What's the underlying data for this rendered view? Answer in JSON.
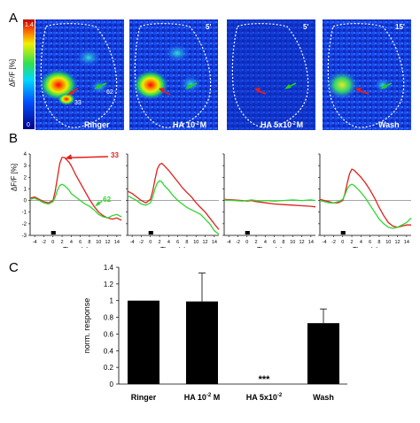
{
  "panel_letters": [
    "A",
    "B",
    "C"
  ],
  "panel_a": {
    "y_title": "ΔF/F [%]",
    "colorbar": {
      "top_label": "1.4",
      "bottom_label": "0"
    },
    "images": [
      {
        "label": "Ringer",
        "time": "",
        "roi_a": "33",
        "roi_b": "62"
      },
      {
        "label": "HA 10",
        "label_sup": "-2",
        "label_suffix": "M",
        "time": "5'"
      },
      {
        "label": "HA 5x10",
        "label_sup": "-2",
        "label_suffix": "M",
        "time": "5'"
      },
      {
        "label": "Wash",
        "time": "15'"
      }
    ]
  },
  "panel_b": {
    "y_title": "ΔF/F [%]",
    "x_title": "Time (s)",
    "series_labels": {
      "red": "33",
      "green": "62"
    },
    "colors": {
      "red": "#e0201c",
      "green": "#2fd62f"
    },
    "yticks": [
      "4",
      "3",
      "2",
      "1",
      "0",
      "-1",
      "-2",
      "-3"
    ],
    "xticks": [
      "-4",
      "-2",
      "0",
      "2",
      "4",
      "6",
      "8",
      "10",
      "12",
      "14"
    ]
  },
  "chart_data": [
    {
      "type": "line",
      "title": "Ringer",
      "xlabel": "Time (s)",
      "ylabel": "ΔF/F [%]",
      "xlim": [
        -5,
        15
      ],
      "ylim": [
        -3,
        4
      ],
      "series": [
        {
          "name": "33",
          "color": "#e0201c",
          "x": [
            -5,
            -4,
            -3,
            -2,
            -1,
            0,
            0.5,
            1,
            1.5,
            2,
            2.5,
            3,
            3.5,
            4,
            4.5,
            5,
            6,
            7,
            8,
            9,
            10,
            11,
            12,
            13,
            14,
            15
          ],
          "y": [
            0.2,
            0.3,
            0.1,
            -0.1,
            -0.2,
            0,
            0.8,
            2.0,
            3.2,
            3.7,
            3.7,
            3.5,
            3.3,
            3.0,
            2.6,
            2.2,
            1.5,
            0.8,
            0.1,
            -0.5,
            -1.0,
            -1.3,
            -1.5,
            -1.6,
            -1.5,
            -1.7
          ]
        },
        {
          "name": "62",
          "color": "#2fd62f",
          "x": [
            -5,
            -4,
            -3,
            -2,
            -1,
            0,
            0.5,
            1,
            1.5,
            2,
            2.5,
            3,
            3.5,
            4,
            5,
            6,
            7,
            8,
            9,
            10,
            11,
            12,
            13,
            14,
            15
          ],
          "y": [
            0.1,
            0.2,
            0,
            -0.2,
            -0.3,
            -0.1,
            0.3,
            0.9,
            1.3,
            1.4,
            1.3,
            1.1,
            0.9,
            0.6,
            0.3,
            0,
            -0.3,
            -0.5,
            -0.8,
            -1.2,
            -1.4,
            -1.5,
            -1.3,
            -1.2,
            -1.4
          ]
        }
      ]
    },
    {
      "type": "line",
      "title": "HA 10-2 M",
      "xlabel": "Time (s)",
      "xlim": [
        -5,
        15
      ],
      "ylim": [
        -3,
        4
      ],
      "series": [
        {
          "name": "33",
          "color": "#e0201c",
          "x": [
            -5,
            -4,
            -3,
            -2,
            -1,
            0,
            0.5,
            1,
            1.5,
            2,
            2.5,
            3,
            4,
            5,
            6,
            7,
            8,
            9,
            10,
            11,
            12,
            13,
            14,
            15
          ],
          "y": [
            0.8,
            0.6,
            0.3,
            0,
            -0.2,
            0.1,
            0.8,
            1.8,
            2.7,
            3.1,
            3.2,
            3.0,
            2.6,
            2.1,
            1.6,
            1.1,
            0.7,
            0.3,
            -0.2,
            -0.6,
            -1.0,
            -1.5,
            -2.0,
            -2.5
          ]
        },
        {
          "name": "62",
          "color": "#2fd62f",
          "x": [
            -5,
            -4,
            -3,
            -2,
            -1,
            0,
            0.5,
            1,
            1.5,
            2,
            2.5,
            3,
            4,
            5,
            6,
            7,
            8,
            9,
            10,
            11,
            12,
            13,
            14,
            15
          ],
          "y": [
            0.4,
            0.2,
            0,
            -0.3,
            -0.4,
            -0.2,
            0.3,
            1.0,
            1.5,
            1.7,
            1.6,
            1.3,
            0.9,
            0.4,
            0,
            -0.3,
            -0.6,
            -0.8,
            -1.0,
            -1.2,
            -1.6,
            -2.0,
            -2.6,
            -2.9
          ]
        }
      ]
    },
    {
      "type": "line",
      "title": "HA 5x10-2 M",
      "xlabel": "Time (s)",
      "xlim": [
        -5,
        15
      ],
      "ylim": [
        -3,
        4
      ],
      "series": [
        {
          "name": "33",
          "color": "#e0201c",
          "x": [
            -5,
            -3,
            -1,
            0,
            1,
            2,
            3,
            4,
            6,
            8,
            10,
            12,
            14,
            15
          ],
          "y": [
            0.1,
            0.05,
            0,
            -0.05,
            0,
            -0.1,
            -0.15,
            -0.2,
            -0.3,
            -0.35,
            -0.4,
            -0.45,
            -0.5,
            -0.55
          ]
        },
        {
          "name": "62",
          "color": "#2fd62f",
          "x": [
            -5,
            -3,
            -1,
            0,
            1,
            2,
            3,
            4,
            6,
            8,
            10,
            12,
            14,
            15
          ],
          "y": [
            0.05,
            0,
            -0.05,
            0,
            0.05,
            0,
            -0.05,
            0,
            -0.05,
            0,
            0.05,
            0,
            0.05,
            0
          ]
        }
      ]
    },
    {
      "type": "line",
      "title": "Wash",
      "xlabel": "Time (s)",
      "xlim": [
        -5,
        15
      ],
      "ylim": [
        -3,
        4
      ],
      "series": [
        {
          "name": "33",
          "color": "#e0201c",
          "x": [
            -5,
            -4,
            -3,
            -2,
            -1,
            0,
            0.5,
            1,
            1.5,
            2,
            2.5,
            3,
            4,
            5,
            6,
            7,
            8,
            9,
            10,
            11,
            12,
            13,
            14,
            15
          ],
          "y": [
            0.1,
            0,
            -0.1,
            -0.2,
            -0.2,
            0,
            0.6,
            1.5,
            2.3,
            2.7,
            2.6,
            2.4,
            2.0,
            1.5,
            0.9,
            0.2,
            -0.6,
            -1.3,
            -1.9,
            -2.2,
            -2.3,
            -2.2,
            -2.1,
            -2.1
          ]
        },
        {
          "name": "62",
          "color": "#2fd62f",
          "x": [
            -5,
            -4,
            -3,
            -2,
            -1,
            0,
            0.5,
            1,
            1.5,
            2,
            2.5,
            3,
            4,
            5,
            6,
            7,
            8,
            9,
            10,
            11,
            12,
            13,
            14,
            15
          ],
          "y": [
            0,
            -0.1,
            -0.2,
            -0.2,
            -0.1,
            0.1,
            0.5,
            1.0,
            1.3,
            1.4,
            1.3,
            1.1,
            0.7,
            0.2,
            -0.4,
            -1.0,
            -1.6,
            -2.0,
            -2.3,
            -2.4,
            -2.3,
            -2.1,
            -1.9,
            -1.5
          ]
        }
      ]
    },
    {
      "type": "bar",
      "title": "",
      "ylabel": "norm. response",
      "ylim": [
        0,
        1.4
      ],
      "yticks": [
        "0",
        "0.2",
        "0.4",
        "0.6",
        "0.8",
        "1",
        "1.2",
        "1.4"
      ],
      "categories": [
        {
          "base": "Ringer"
        },
        {
          "base": "HA 10",
          "sup": "-2",
          "suffix": " M"
        },
        {
          "base": "HA 5x10",
          "sup": "-2",
          "suffix": ""
        },
        {
          "base": "Wash"
        }
      ],
      "values": [
        1.0,
        0.99,
        0.0,
        0.73
      ],
      "errors": [
        0,
        0.34,
        0,
        0.17
      ],
      "annotations": [
        {
          "category_index": 2,
          "text": "***"
        }
      ],
      "bar_color": "#000000"
    }
  ]
}
